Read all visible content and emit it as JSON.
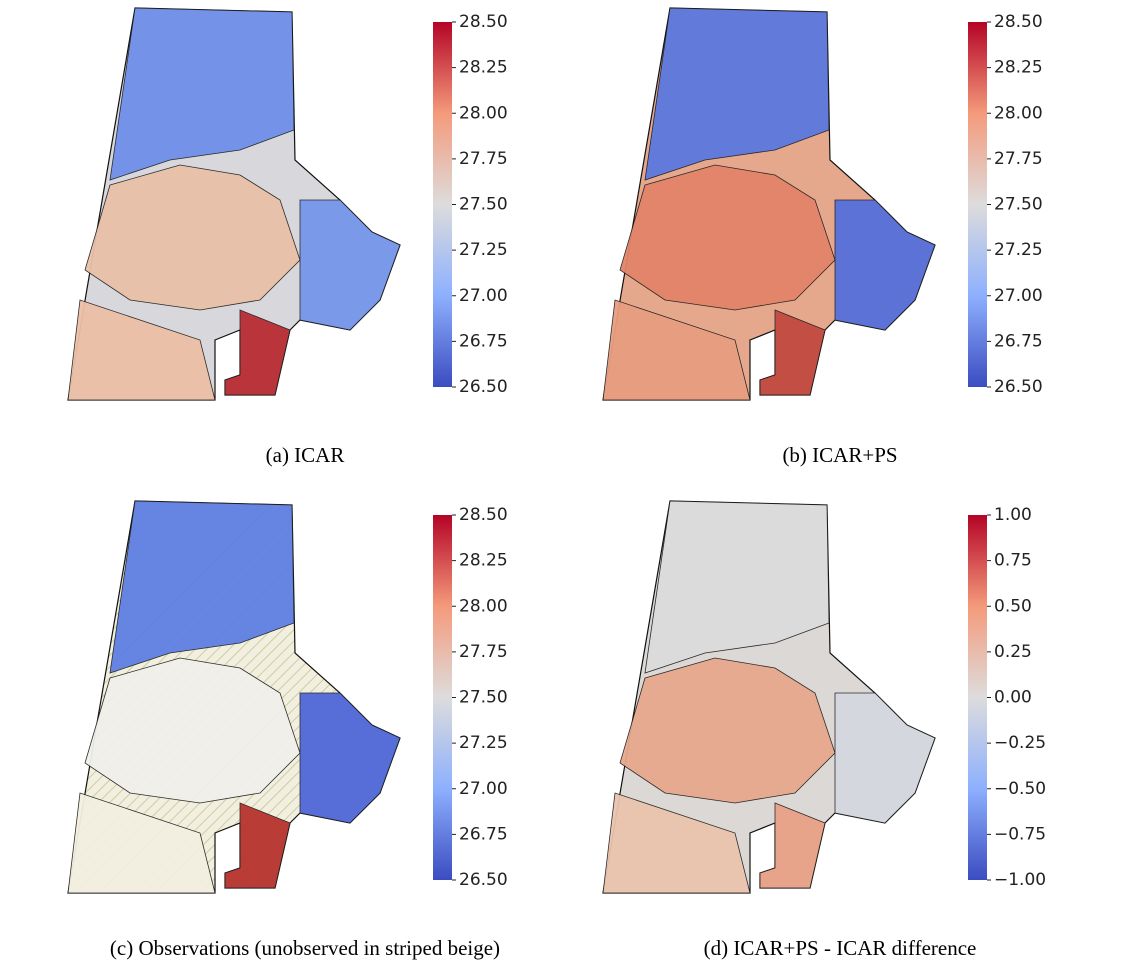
{
  "panels": [
    {
      "caption": "(a) ICAR",
      "colorbar": {
        "lim": [
          26.5,
          28.5
        ],
        "ticks": [
          {
            "value": 26.5,
            "label": "26.50"
          },
          {
            "value": 26.75,
            "label": "26.75"
          },
          {
            "value": 27,
            "label": "27.00"
          },
          {
            "value": 27.25,
            "label": "27.25"
          },
          {
            "value": 27.5,
            "label": "27.50"
          },
          {
            "value": 27.75,
            "label": "27.75"
          },
          {
            "value": 28,
            "label": "28.00"
          },
          {
            "value": 28.25,
            "label": "28.25"
          },
          {
            "value": 28.5,
            "label": "28.50"
          }
        ]
      }
    },
    {
      "caption": "(b) ICAR+PS",
      "colorbar": {
        "lim": [
          26.5,
          28.5
        ],
        "ticks": [
          {
            "value": 26.5,
            "label": "26.50"
          },
          {
            "value": 26.75,
            "label": "26.75"
          },
          {
            "value": 27,
            "label": "27.00"
          },
          {
            "value": 27.25,
            "label": "27.25"
          },
          {
            "value": 27.5,
            "label": "27.50"
          },
          {
            "value": 27.75,
            "label": "27.75"
          },
          {
            "value": 28,
            "label": "28.00"
          },
          {
            "value": 28.25,
            "label": "28.25"
          },
          {
            "value": 28.5,
            "label": "28.50"
          }
        ]
      }
    },
    {
      "caption": "(c) Observations (unobserved in striped beige)",
      "colorbar": {
        "lim": [
          26.5,
          28.5
        ],
        "ticks": [
          {
            "value": 26.5,
            "label": "26.50"
          },
          {
            "value": 26.75,
            "label": "26.75"
          },
          {
            "value": 27,
            "label": "27.00"
          },
          {
            "value": 27.25,
            "label": "27.25"
          },
          {
            "value": 27.5,
            "label": "27.50"
          },
          {
            "value": 27.75,
            "label": "27.75"
          },
          {
            "value": 28,
            "label": "28.00"
          },
          {
            "value": 28.25,
            "label": "28.25"
          },
          {
            "value": 28.5,
            "label": "28.50"
          }
        ]
      }
    },
    {
      "caption": "(d) ICAR+PS - ICAR difference",
      "colorbar": {
        "lim": [
          -1,
          1
        ],
        "ticks": [
          {
            "value": -1,
            "label": "−1.00"
          },
          {
            "value": -0.75,
            "label": "−0.75"
          },
          {
            "value": -0.5,
            "label": "−0.50"
          },
          {
            "value": -0.25,
            "label": "−0.25"
          },
          {
            "value": 0,
            "label": "0.00"
          },
          {
            "value": 0.25,
            "label": "0.25"
          },
          {
            "value": 0.5,
            "label": "0.50"
          },
          {
            "value": 0.75,
            "label": "0.75"
          },
          {
            "value": 1,
            "label": "1.00"
          }
        ]
      }
    }
  ]
}
